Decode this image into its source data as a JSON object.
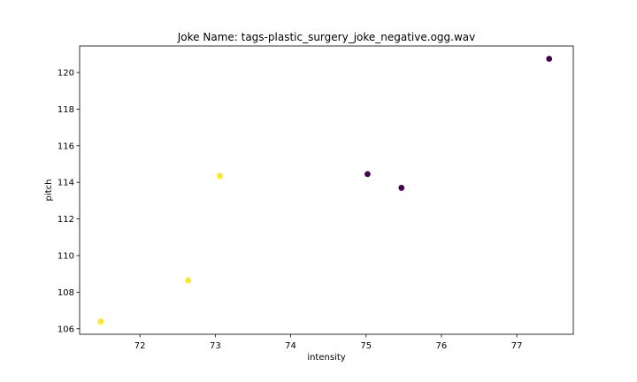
{
  "chart_data": {
    "type": "scatter",
    "title": "Joke Name: tags-plastic_surgery_joke_negative.ogg.wav",
    "xlabel": "intensity",
    "ylabel": "pitch",
    "xlim": [
      71.2,
      77.75
    ],
    "ylim": [
      105.7,
      121.45
    ],
    "xticks": [
      72,
      73,
      74,
      75,
      76,
      77
    ],
    "yticks": [
      106,
      108,
      110,
      112,
      114,
      116,
      118,
      120
    ],
    "grid": false,
    "series": [
      {
        "color": "#fde725",
        "points": [
          {
            "x": 71.48,
            "y": 106.4
          },
          {
            "x": 72.64,
            "y": 108.65
          },
          {
            "x": 73.06,
            "y": 114.35
          }
        ]
      },
      {
        "color": "#440154",
        "points": [
          {
            "x": 75.02,
            "y": 114.45
          },
          {
            "x": 75.47,
            "y": 113.7
          },
          {
            "x": 77.43,
            "y": 120.75
          }
        ]
      }
    ]
  }
}
